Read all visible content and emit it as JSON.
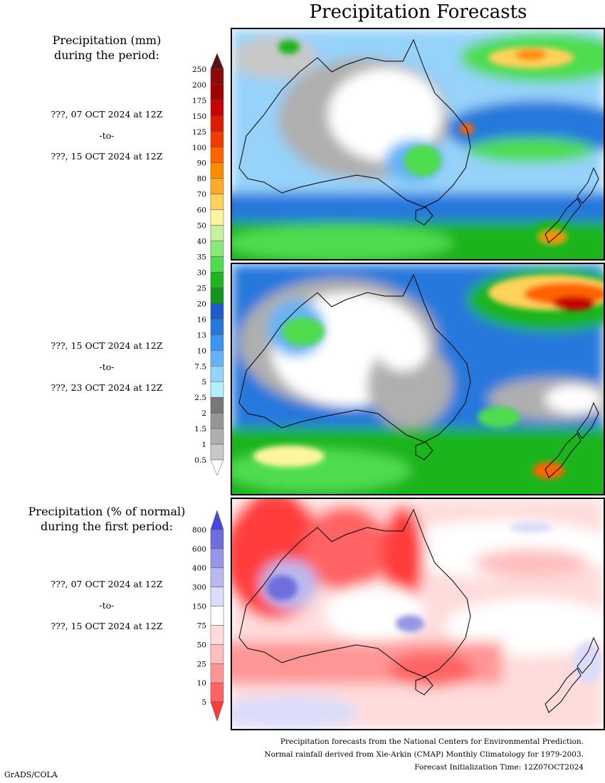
{
  "title": "Precipitation Forecasts",
  "panel1": {
    "header": [
      "Precipitation (mm)",
      "during the period:"
    ],
    "start": "???, 07 OCT 2024 at 12Z",
    "to": "-to-",
    "end": "???, 15 OCT 2024 at 12Z"
  },
  "panel2": {
    "start": "???, 15 OCT 2024 at 12Z",
    "to": "-to-",
    "end": "???, 23 OCT 2024 at 12Z"
  },
  "panel3": {
    "header": [
      "Precipitation (% of normal)",
      "during the first period:"
    ],
    "start": "???, 07 OCT 2024 at 12Z",
    "to": "-to-",
    "end": "???, 15 OCT 2024 at 12Z"
  },
  "mm_scale": {
    "labels": [
      "250",
      "200",
      "175",
      "150",
      "125",
      "100",
      "90",
      "80",
      "70",
      "60",
      "50",
      "40",
      "35",
      "30",
      "25",
      "20",
      "16",
      "13",
      "10",
      "7.5",
      "5",
      "2.5",
      "2",
      "1.5",
      "1",
      "0.5"
    ],
    "colors": [
      "#5a1414",
      "#8c0a0a",
      "#a00000",
      "#c80000",
      "#dc1e00",
      "#f03c00",
      "#ff6400",
      "#ff8c00",
      "#ffaa28",
      "#ffd25a",
      "#fff5a0",
      "#c8f0a0",
      "#8ce878",
      "#50dc50",
      "#1eb41e",
      "#14961e",
      "#1e5ac8",
      "#2878dc",
      "#3c96f0",
      "#64b4f5",
      "#96d2fa",
      "#b4f0fa",
      "#787878",
      "#969696",
      "#afafaf",
      "#c8c8c8"
    ]
  },
  "pct_scale": {
    "labels": [
      "800",
      "600",
      "400",
      "300",
      "150",
      "75",
      "50",
      "25",
      "10",
      "5"
    ],
    "colors": [
      "#4646dc",
      "#6e6edc",
      "#9696e6",
      "#b9b9f0",
      "#dcdcfa",
      "#ffffff",
      "#ffdcdc",
      "#ffbebe",
      "#ff9696",
      "#ff6464",
      "#ff3c3c"
    ]
  },
  "footer": [
    "Precipitation forecasts from the National Centers for Environmental Prediction.",
    "Normal rainfall derived from Xie-Arkin (CMAP) Monthly Climatology for 1979-2003.",
    "Forecast Initialization Time: 12Z07OCT2024"
  ],
  "brand": "GrADS/COLA"
}
